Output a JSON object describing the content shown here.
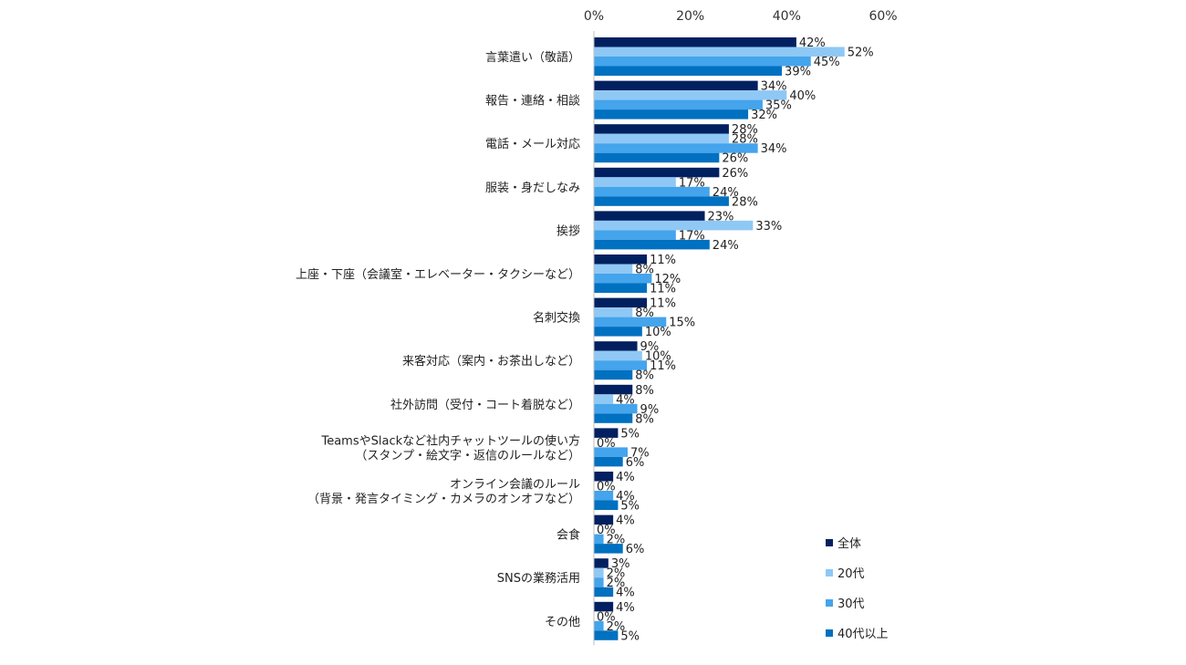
{
  "chart_data": {
    "type": "bar",
    "orientation": "horizontal",
    "title": "",
    "xlabel": "",
    "ylabel": "",
    "xlim": [
      0,
      60
    ],
    "x_ticks": [
      "0%",
      "20%",
      "40%",
      "60%"
    ],
    "x_tick_values": [
      0,
      20,
      40,
      60
    ],
    "grid": false,
    "legend_position": "bottom-right",
    "categories": [
      [
        "言葉遣い（敬語）"
      ],
      [
        "報告・連絡・相談"
      ],
      [
        "電話・メール対応"
      ],
      [
        "服装・身だしなみ"
      ],
      [
        "挨拶"
      ],
      [
        "上座・下座（会議室・エレベーター・タクシーなど）"
      ],
      [
        "名刺交換"
      ],
      [
        "来客対応（案内・お茶出しなど）"
      ],
      [
        "社外訪問（受付・コート着脱など）"
      ],
      [
        "TeamsやSlackなど社内チャットツールの使い方",
        "（スタンプ・絵文字・返信のルールなど）"
      ],
      [
        "オンライン会議のルール",
        "（背景・発言タイミング・カメラのオンオフなど）"
      ],
      [
        "会食"
      ],
      [
        "SNSの業務活用"
      ],
      [
        "その他"
      ]
    ],
    "series": [
      {
        "name": "全体",
        "color": "#002060",
        "values": [
          42,
          34,
          28,
          26,
          23,
          11,
          11,
          9,
          8,
          5,
          4,
          4,
          3,
          4
        ]
      },
      {
        "name": "20代",
        "color": "#8fc8f5",
        "values": [
          52,
          40,
          28,
          17,
          33,
          8,
          8,
          10,
          4,
          0,
          0,
          0,
          2,
          0
        ]
      },
      {
        "name": "30代",
        "color": "#44a4ec",
        "values": [
          45,
          35,
          34,
          24,
          17,
          12,
          15,
          11,
          9,
          7,
          4,
          2,
          2,
          2
        ]
      },
      {
        "name": "40代以上",
        "color": "#0070c0",
        "values": [
          39,
          32,
          26,
          28,
          24,
          11,
          10,
          8,
          8,
          6,
          5,
          6,
          4,
          5
        ]
      }
    ],
    "value_suffix": "%"
  }
}
